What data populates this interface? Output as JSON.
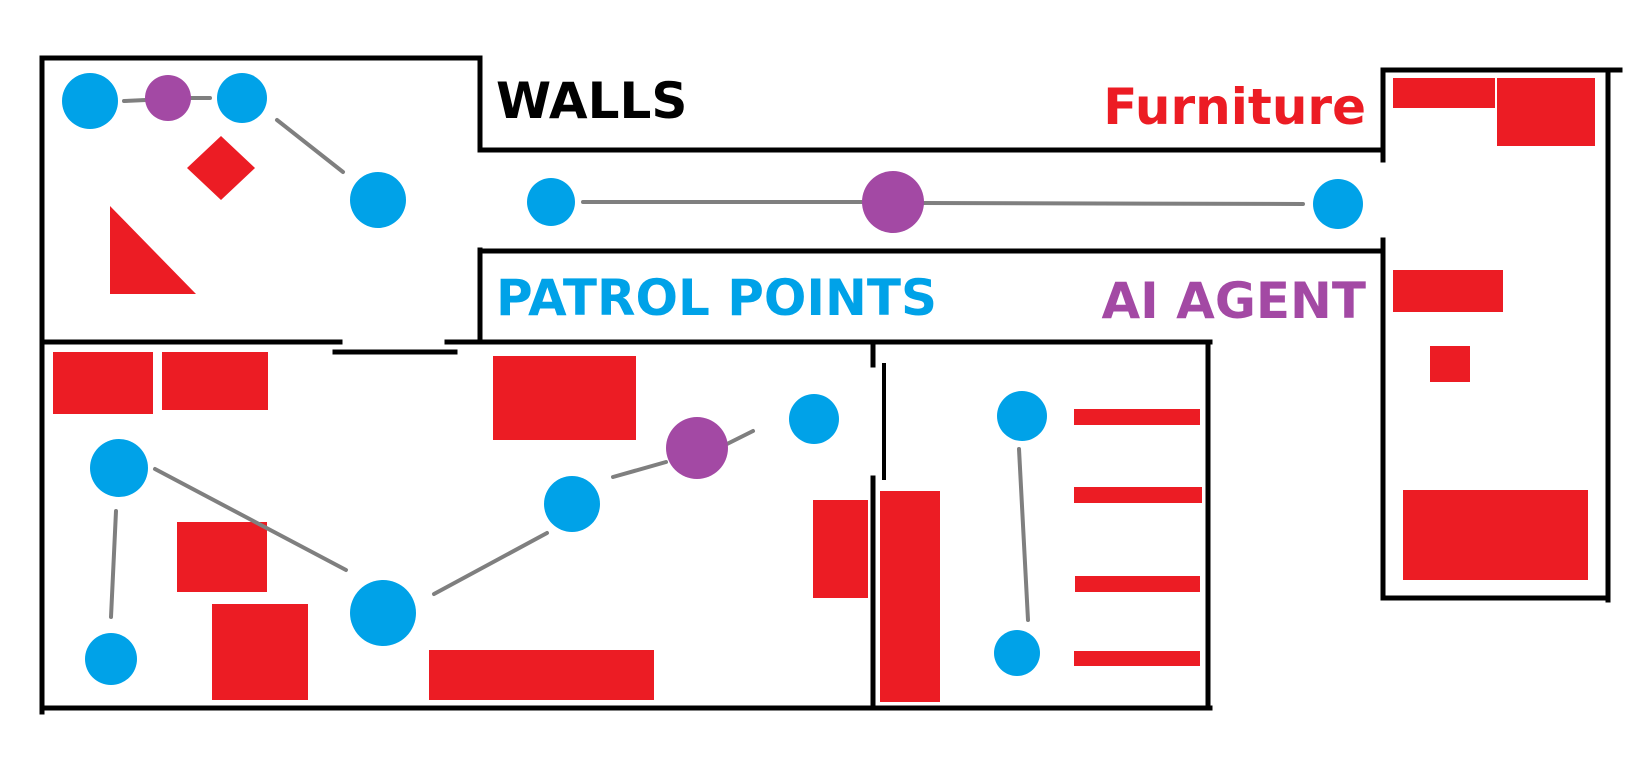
{
  "legend": {
    "walls": "WALLS",
    "furniture": "Furniture",
    "patrol_points": "PATROL POINTS",
    "ai_agent": "AI AGENT"
  },
  "colors": {
    "walls": "#000000",
    "furniture": "#ec1c24",
    "patrol_point": "#00a2e8",
    "ai_agent": "#a349a4",
    "path": "#7f7f7f",
    "background": "#ffffff"
  }
}
